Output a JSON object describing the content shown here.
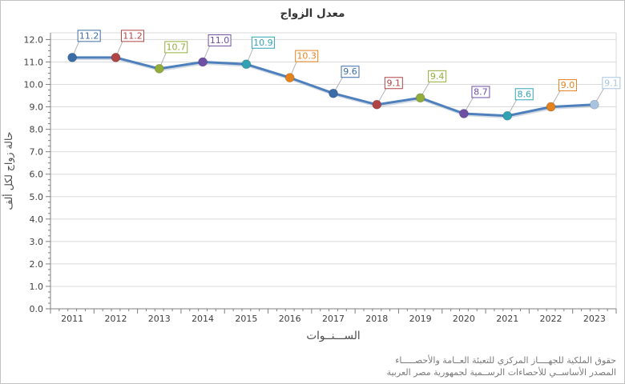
{
  "chart_data": {
    "type": "line",
    "title": "معدل الزواج",
    "categories": [
      "2011",
      "2012",
      "2013",
      "2014",
      "2015",
      "2016",
      "2017",
      "2018",
      "2019",
      "2020",
      "2021",
      "2022",
      "2023"
    ],
    "values": [
      11.2,
      11.2,
      10.7,
      11.0,
      10.9,
      10.3,
      9.6,
      9.1,
      9.4,
      8.7,
      8.6,
      9.0,
      9.1
    ],
    "point_labels": [
      "11.2",
      "11.2",
      "10.7",
      "11.0",
      "10.9",
      "10.3",
      "9.6",
      "9.1",
      "9.4",
      "8.7",
      "8.6",
      "9.0",
      "9.1"
    ],
    "xlabel": "الســـنــوات",
    "ylabel": "حالة زواج لكل ألف",
    "ylim": [
      0,
      12.3
    ],
    "ytick_step": 1,
    "ytick_decimals": 1,
    "grid": true,
    "legend_position": "none",
    "line_color": "#4E80BD",
    "line_shadow_color": "#9FB0C1",
    "point_colors": [
      "#3C6CA8",
      "#B04344",
      "#92AD3C",
      "#6E4FA3",
      "#31A2B4",
      "#E5821E",
      "#3C6CA8",
      "#B04344",
      "#92AD3C",
      "#6E4FA3",
      "#31A2B4",
      "#E5821E",
      "#A9C4E1"
    ],
    "axis_color": "#7F7F7F",
    "grid_color": "#DADADA",
    "tick_label_color": "#404040",
    "axis_title_color": "#4A4A4A"
  },
  "footer": {
    "line1": "حقوق الملكية للجهــــاز المركزي للتعبئة العــامة والأحصـــــاء",
    "line2": "المصدر الأساســي للأحصاءات الرســمية لجمهورية مصر العربية"
  }
}
